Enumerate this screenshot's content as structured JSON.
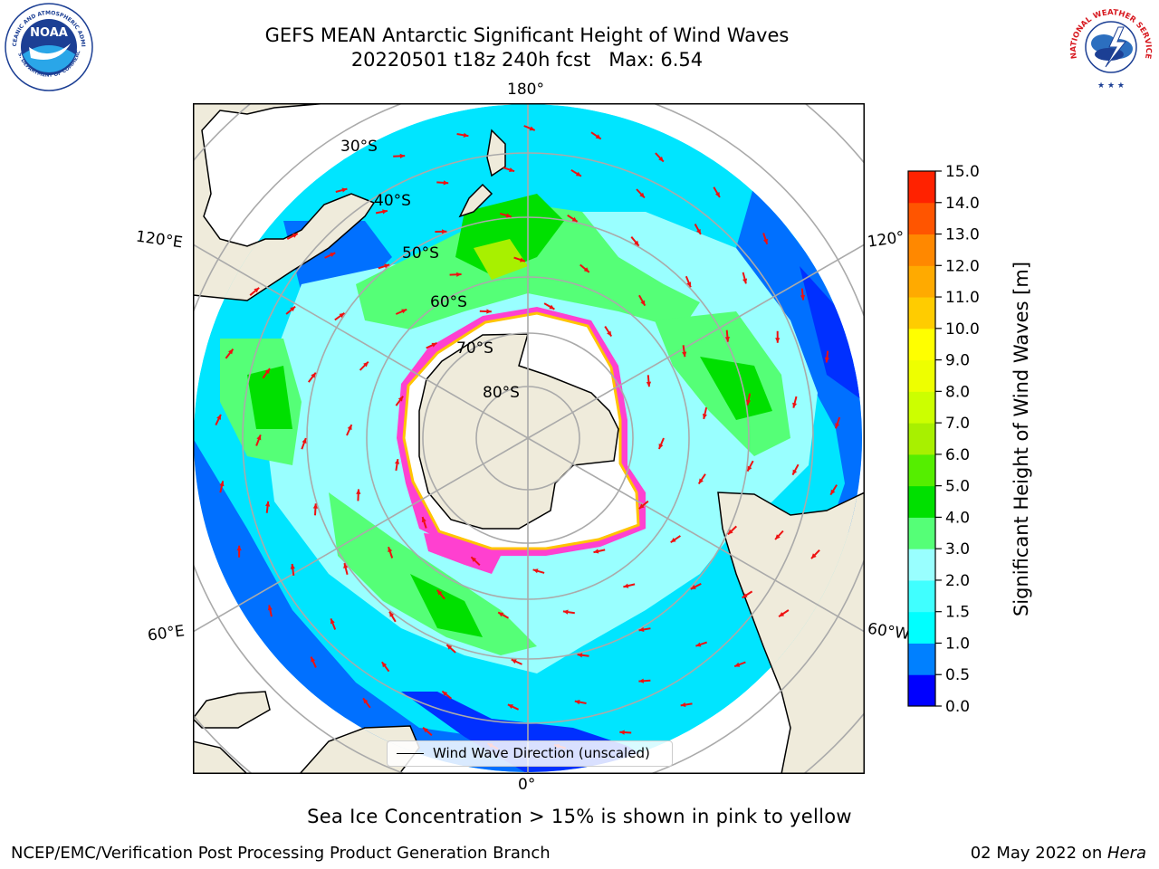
{
  "header": {
    "title_line1": "GEFS MEAN Antarctic Significant Height of Wind Waves",
    "title_line2": "20220501 t18z 240h fcst   Max: 6.54"
  },
  "logos": {
    "noaa_icon": "noaa-logo-icon",
    "noaa_text": "NOAA",
    "noaa_ring_top": "NATIONAL OCEANIC AND ATMOSPHERIC ADMINISTRATION",
    "noaa_ring_bottom": "U.S. DEPARTMENT OF COMMERCE",
    "nws_icon": "nws-logo-icon",
    "nws_ring": "NATIONAL WEATHER SERVICE"
  },
  "map": {
    "longitude_labels": {
      "top": "180°",
      "bottom": "0°",
      "upper_left": "120°E",
      "upper_right": "120°",
      "lower_left": "60°E",
      "lower_right": "60°W"
    },
    "latitude_labels": [
      "30°S",
      "40°S",
      "50°S",
      "60°S",
      "70°S",
      "80°S"
    ],
    "legend": {
      "label": "Wind Wave Direction (unscaled)"
    },
    "colors": {
      "ocean_low": "#0050ff",
      "ocean_mid": "#00ffff",
      "ocean_high": "#40e840",
      "land": "#efebdb",
      "ice_edge": "#ff40d0",
      "arrow": "#ee1111"
    }
  },
  "colorbar": {
    "label": "Significant Height of Wind Waves [m]",
    "ticks": [
      "0.0",
      "0.5",
      "1.0",
      "1.5",
      "2.0",
      "3.0",
      "4.0",
      "5.0",
      "6.0",
      "7.0",
      "8.0",
      "9.0",
      "10.0",
      "11.0",
      "12.0",
      "13.0",
      "14.0",
      "15.0"
    ],
    "colors": [
      "#0000ff",
      "#0080ff",
      "#00ffff",
      "#40ffff",
      "#99ffff",
      "#55ff77",
      "#00e000",
      "#55ee00",
      "#a8f000",
      "#ccff00",
      "#eeff00",
      "#ffff00",
      "#ffcc00",
      "#ffaa00",
      "#ff8800",
      "#ff5500",
      "#ff2200"
    ]
  },
  "footer": {
    "note": "Sea Ice Concentration > 15% is shown in pink to yellow",
    "left": "NCEP/EMC/Verification Post Processing Product Generation Branch",
    "right_prefix": "02 May 2022 on ",
    "right_host": "Hera"
  }
}
